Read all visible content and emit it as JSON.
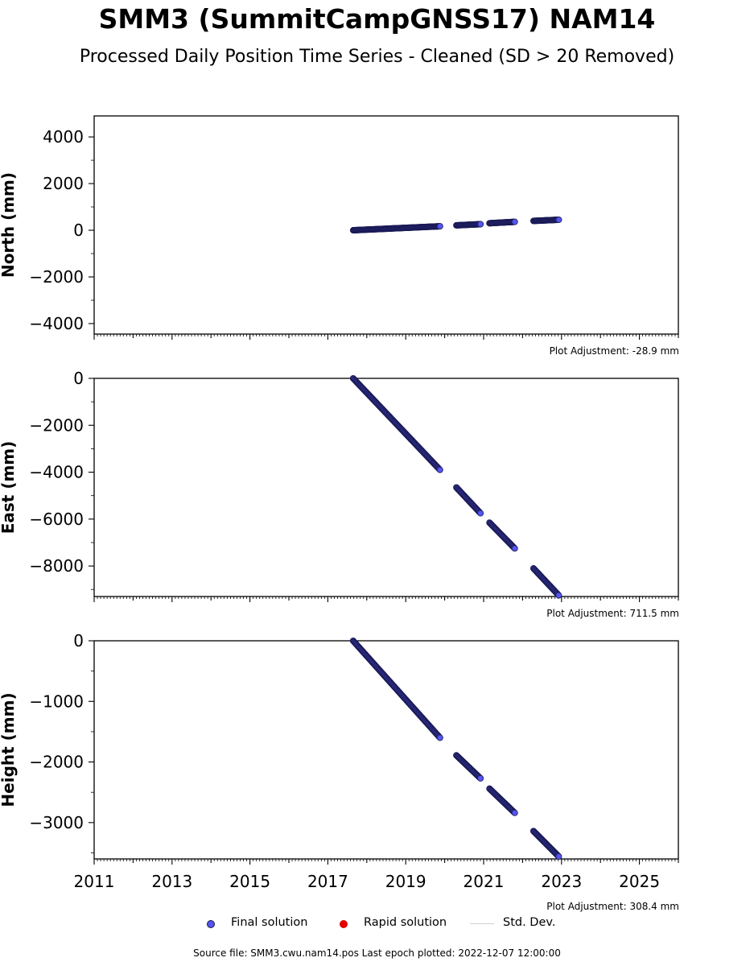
{
  "title": "SMM3 (SummitCampGNSS17) NAM14",
  "subtitle": "Processed Daily Position Time Series - Cleaned (SD > 20 Removed)",
  "legend": {
    "final_label": "Final solution",
    "rapid_label": "Rapid solution",
    "std_label": "Std. Dev."
  },
  "source": "Source file: SMM3.cwu.nam14.pos  Last epoch plotted: 2022-12-07 12:00:00",
  "colors": {
    "final_fill": "#5555ee",
    "final_edge": "#1a1a55",
    "rapid": "#e00000",
    "std_dev": "#d0d0d0"
  },
  "chart_data": [
    {
      "type": "scatter",
      "ylabel": "North (mm)",
      "adjustment": "Plot Adjustment: -28.9 mm",
      "xlim": [
        2011,
        2026
      ],
      "ylim": [
        -4450,
        4900
      ],
      "yticks": [
        -4000,
        -2000,
        0,
        2000,
        4000
      ],
      "yticklabels": [
        "−4000",
        "−2000",
        "0",
        "2000",
        "4000"
      ],
      "show_xticklabels": false,
      "segments": [
        {
          "start": 2017.65,
          "end": 2019.88,
          "y0": 0,
          "y1": 170
        },
        {
          "start": 2020.3,
          "end": 2020.92,
          "y0": 210,
          "y1": 260
        },
        {
          "start": 2021.15,
          "end": 2021.8,
          "y0": 300,
          "y1": 360
        },
        {
          "start": 2022.28,
          "end": 2022.93,
          "y0": 400,
          "y1": 450
        }
      ]
    },
    {
      "type": "scatter",
      "ylabel": "East (mm)",
      "adjustment": "Plot Adjustment: 711.5 mm",
      "xlim": [
        2011,
        2026
      ],
      "ylim": [
        -9300,
        0
      ],
      "yticks": [
        -8000,
        -6000,
        -4000,
        -2000,
        0
      ],
      "yticklabels": [
        "−8000",
        "−6000",
        "−4000",
        "−2000",
        "0"
      ],
      "show_xticklabels": false,
      "segments": [
        {
          "start": 2017.65,
          "end": 2019.88,
          "y0": 0,
          "y1": -3900
        },
        {
          "start": 2020.3,
          "end": 2020.92,
          "y0": -4650,
          "y1": -5750
        },
        {
          "start": 2021.15,
          "end": 2021.8,
          "y0": -6150,
          "y1": -7250
        },
        {
          "start": 2022.28,
          "end": 2022.93,
          "y0": -8100,
          "y1": -9250
        }
      ]
    },
    {
      "type": "scatter",
      "ylabel": "Height (mm)",
      "adjustment": "Plot Adjustment: 308.4 mm",
      "xlim": [
        2011,
        2026
      ],
      "ylim": [
        -3600,
        0
      ],
      "yticks": [
        -3000,
        -2000,
        -1000,
        0
      ],
      "yticklabels": [
        "−3000",
        "−2000",
        "−1000",
        "0"
      ],
      "show_xticklabels": true,
      "xticks": [
        2011,
        2013,
        2015,
        2017,
        2019,
        2021,
        2023,
        2025
      ],
      "segments": [
        {
          "start": 2017.65,
          "end": 2019.88,
          "y0": 0,
          "y1": -1600
        },
        {
          "start": 2020.3,
          "end": 2020.92,
          "y0": -1890,
          "y1": -2270
        },
        {
          "start": 2021.15,
          "end": 2021.8,
          "y0": -2440,
          "y1": -2840
        },
        {
          "start": 2022.28,
          "end": 2022.93,
          "y0": -3140,
          "y1": -3560
        }
      ]
    }
  ]
}
